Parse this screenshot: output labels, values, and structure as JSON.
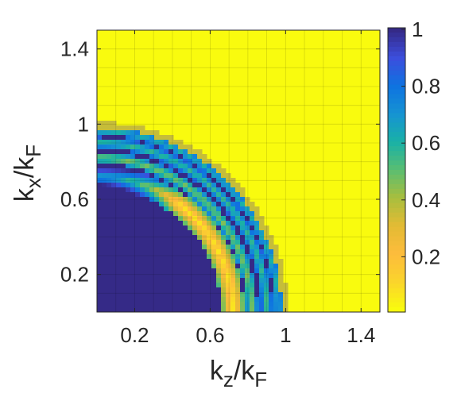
{
  "chart_data": {
    "type": "heatmap",
    "title": "",
    "xlabel": {
      "base": "k",
      "sub1": "z",
      "mid": "/k",
      "sub2": "F"
    },
    "ylabel": {
      "base": "k",
      "sub1": "x",
      "mid": "/k",
      "sub2": "F"
    },
    "xlim": [
      0,
      1.5
    ],
    "ylim": [
      0,
      1.5
    ],
    "xticks": [
      0.2,
      0.6,
      1,
      1.4
    ],
    "xtick_labels": [
      "0.2",
      "0.6",
      "1",
      "1.4"
    ],
    "yticks": [
      0.2,
      0.6,
      1,
      1.4
    ],
    "ytick_labels": [
      "0.2",
      "0.6",
      "1",
      "1.4"
    ],
    "grid": true,
    "colorbar": {
      "range": [
        0,
        1
      ],
      "ticks": [
        0.2,
        0.4,
        0.6,
        0.8,
        1
      ],
      "tick_labels": [
        "0.2",
        "0.4",
        "0.6",
        "0.8",
        "1"
      ],
      "colormap": "parula",
      "position": "right"
    },
    "field": {
      "description_value_inside": 1,
      "description_value_outside": 0,
      "fermi_radius": 1.0,
      "inner_arc_radii": [
        0.72,
        0.82,
        0.9
      ],
      "outer_ring_radius": 1.01
    }
  }
}
